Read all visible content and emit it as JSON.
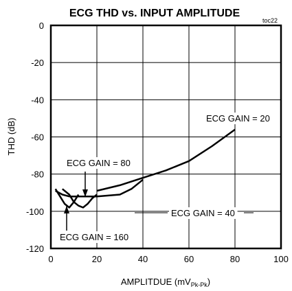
{
  "chart_data": {
    "type": "line",
    "title": "ECG THD vs. INPUT AMPLITUDE",
    "tag": "toc22",
    "xlabel": "AMPLITDUE (mV",
    "xlabel_sub": "Pk-Pk",
    "xlabel_close": ")",
    "ylabel": "THD (dB)",
    "xlim": [
      0,
      100
    ],
    "ylim": [
      -120,
      0
    ],
    "x_ticks": [
      0,
      20,
      40,
      60,
      80,
      100
    ],
    "y_ticks": [
      0,
      -20,
      -40,
      -60,
      -80,
      -100,
      -120
    ],
    "grid": true,
    "series": [
      {
        "name": "ECG GAIN = 20",
        "x": [
          20,
          30,
          40,
          50,
          60,
          70,
          80
        ],
        "y": [
          -89,
          -86,
          -82,
          -78,
          -73,
          -65,
          -56
        ]
      },
      {
        "name": "ECG GAIN = 40",
        "x": [
          2,
          5,
          8,
          12,
          20,
          30,
          35,
          40
        ],
        "y": [
          -89,
          -91,
          -92,
          -92,
          -92,
          -91,
          -88,
          -83
        ]
      },
      {
        "name": "ECG GAIN = 80",
        "x": [
          5,
          8,
          10,
          12,
          14,
          16,
          18,
          20
        ],
        "y": [
          -88,
          -91,
          -95,
          -97,
          -98,
          -96,
          -93,
          -91
        ]
      },
      {
        "name": "ECG GAIN = 160",
        "x": [
          2,
          4,
          6,
          8,
          10,
          12
        ],
        "y": [
          -88,
          -92,
          -96,
          -98,
          -95,
          -91
        ]
      }
    ],
    "annotations": [
      {
        "text": "ECG GAIN = 20",
        "series": "ECG GAIN = 20"
      },
      {
        "text": "ECG GAIN = 80",
        "series": "ECG GAIN = 80"
      },
      {
        "text": "ECG GAIN = 40",
        "series": "ECG GAIN = 40"
      },
      {
        "text": "ECG GAIN = 160",
        "series": "ECG GAIN = 160"
      }
    ]
  }
}
